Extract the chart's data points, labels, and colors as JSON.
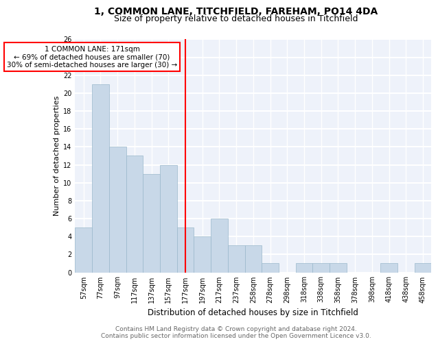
{
  "title1": "1, COMMON LANE, TITCHFIELD, FAREHAM, PO14 4DA",
  "title2": "Size of property relative to detached houses in Titchfield",
  "xlabel": "Distribution of detached houses by size in Titchfield",
  "ylabel": "Number of detached properties",
  "categories": [
    "57sqm",
    "77sqm",
    "97sqm",
    "117sqm",
    "137sqm",
    "157sqm",
    "177sqm",
    "197sqm",
    "217sqm",
    "237sqm",
    "258sqm",
    "278sqm",
    "298sqm",
    "318sqm",
    "338sqm",
    "358sqm",
    "378sqm",
    "398sqm",
    "418sqm",
    "438sqm",
    "458sqm"
  ],
  "values": [
    5,
    21,
    14,
    13,
    11,
    12,
    5,
    4,
    6,
    3,
    3,
    1,
    0,
    1,
    1,
    1,
    0,
    0,
    1,
    0,
    1
  ],
  "bar_color": "#c8d8e8",
  "bar_edge_color": "#9ab8cc",
  "bar_width": 1.0,
  "vline_x_index": 6,
  "vline_color": "red",
  "annotation_line1": "1 COMMON LANE: 171sqm",
  "annotation_line2": "← 69% of detached houses are smaller (70)",
  "annotation_line3": "30% of semi-detached houses are larger (30) →",
  "ylim": [
    0,
    26
  ],
  "yticks": [
    0,
    2,
    4,
    6,
    8,
    10,
    12,
    14,
    16,
    18,
    20,
    22,
    24,
    26
  ],
  "footer_line1": "Contains HM Land Registry data © Crown copyright and database right 2024.",
  "footer_line2": "Contains public sector information licensed under the Open Government Licence v3.0.",
  "bg_color": "#eef2fa",
  "grid_color": "white",
  "title1_fontsize": 10,
  "title2_fontsize": 9,
  "xlabel_fontsize": 8.5,
  "ylabel_fontsize": 8,
  "tick_fontsize": 7,
  "footer_fontsize": 6.5,
  "ann_fontsize": 7.5
}
